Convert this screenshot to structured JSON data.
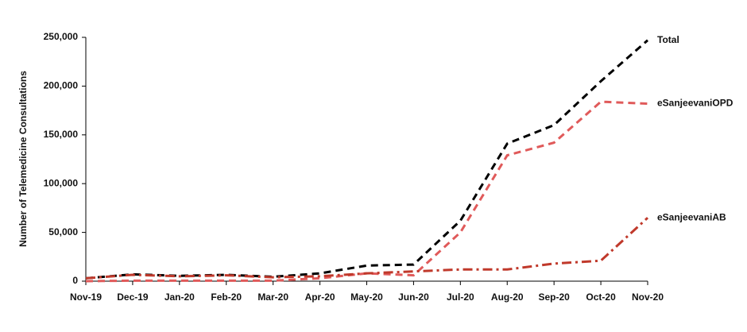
{
  "chart_data": {
    "type": "line",
    "y_label": "Number of Telemedicine Consultations",
    "categories": [
      "Nov-19",
      "Dec-19",
      "Jan-20",
      "Feb-20",
      "Mar-20",
      "Apr-20",
      "May-20",
      "Jun-20",
      "Jul-20",
      "Aug-20",
      "Sep-20",
      "Oct-20",
      "Nov-20"
    ],
    "series": [
      {
        "name": "Total",
        "color": "#000000",
        "dash": "9,6",
        "values": [
          3000,
          7000,
          5500,
          6500,
          4500,
          8000,
          16000,
          17000,
          62000,
          141000,
          160000,
          205000,
          247000
        ]
      },
      {
        "name": "eSanjeevaniOPD",
        "color": "#e05a5a",
        "dash": "9,6",
        "values": [
          0,
          500,
          500,
          500,
          500,
          3000,
          8000,
          6000,
          50000,
          129000,
          142000,
          184000,
          182000
        ]
      },
      {
        "name": "eSanjeevaniAB",
        "color": "#c0392b",
        "dash": "12,5,3,5",
        "values": [
          3000,
          6500,
          5000,
          6000,
          4000,
          5000,
          8000,
          10000,
          12000,
          12000,
          18000,
          21000,
          65000
        ]
      }
    ],
    "ylim": [
      0,
      250000
    ],
    "yticks": [
      0,
      {
        "value": 50000,
        "label": "50,000"
      },
      {
        "value": 100000,
        "label": "100,000"
      },
      {
        "value": 150000,
        "label": "150,000"
      },
      {
        "value": 200000,
        "label": "200,000"
      },
      {
        "value": 250000,
        "label": "250,000"
      }
    ],
    "grid": false
  }
}
